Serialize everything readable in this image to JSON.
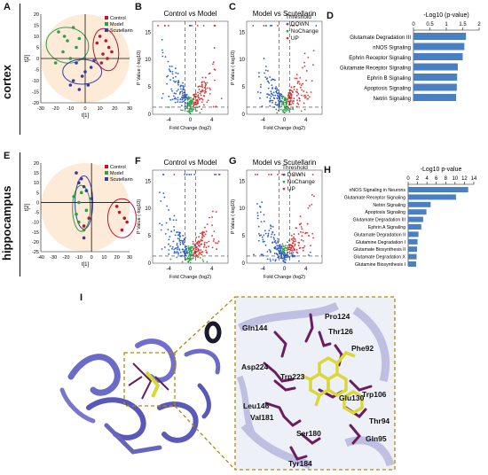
{
  "row_labels": {
    "cortex": "cortex",
    "hippocampus": "hippocampus"
  },
  "panel_letters": [
    "A",
    "B",
    "C",
    "D",
    "E",
    "F",
    "G",
    "H",
    "I"
  ],
  "legend_groups": [
    "Control",
    "Model",
    "Scutellarin"
  ],
  "threshold_legend": {
    "title": "Threshold",
    "items": [
      "DOWN",
      "NoChange",
      "UP"
    ]
  },
  "volcano_axes": {
    "xlabel": "Fold Change (log2)",
    "ylabel": "P Value (-log10)"
  },
  "volcano_titles": {
    "b": "Control vs Model",
    "c": "Model vs Scutellarin",
    "f": "Control vs Model",
    "g": "Model vs Scutellarin"
  },
  "pca_axes": {
    "xlabel": "t[1]",
    "ylabel": "t[2]"
  },
  "pathway_titles": {
    "d": "-Log10 (p-value)",
    "h": "-Log10 p-value"
  },
  "residue_labels": [
    "Pro124",
    "Thr126",
    "Phe92",
    "Gln144",
    "Asp224",
    "Trp223",
    "Leu146",
    "Val181",
    "Glu130",
    "Trp106",
    "Thr94",
    "Gln95",
    "Ser180",
    "Tyr184"
  ],
  "colors": {
    "control": "#c8102e",
    "model": "#2e9e4a",
    "scut": "#3a3aa0",
    "bar": "#4a7fc1",
    "up": "#e53030",
    "down": "#2a5fd0",
    "nochange": "#33a34a",
    "protein": "#6a6ac8",
    "ligand": "#d8d838",
    "residue": "#6a1e60"
  },
  "chart_data": [
    {
      "panel": "A",
      "type": "scatter",
      "xlabel": "t[1]",
      "ylabel": "t[2]",
      "xlim": [
        -30,
        30
      ],
      "ylim": [
        -20,
        20
      ],
      "series": [
        {
          "name": "Control",
          "points": [
            [
              10,
              10
            ],
            [
              14,
              8
            ],
            [
              16,
              5
            ],
            [
              12,
              2
            ],
            [
              8,
              7
            ],
            [
              18,
              3
            ],
            [
              11,
              -2
            ],
            [
              15,
              0
            ]
          ]
        },
        {
          "name": "Model",
          "points": [
            [
              -18,
              12
            ],
            [
              -12,
              8
            ],
            [
              -8,
              14
            ],
            [
              -15,
              3
            ],
            [
              -6,
              5
            ],
            [
              -20,
              -2
            ],
            [
              -10,
              0
            ],
            [
              -4,
              9
            ],
            [
              -14,
              10
            ]
          ]
        },
        {
          "name": "Scutellarin",
          "points": [
            [
              -8,
              -10
            ],
            [
              -4,
              -14
            ],
            [
              0,
              -6
            ],
            [
              -10,
              -12
            ],
            [
              4,
              -4
            ],
            [
              -6,
              -2
            ],
            [
              2,
              -12
            ],
            [
              -2,
              -8
            ],
            [
              6,
              -1
            ]
          ]
        }
      ]
    },
    {
      "panel": "D",
      "type": "bar",
      "orientation": "horizontal",
      "title": "-Log10 (p-value)",
      "xlim": [
        0,
        2
      ],
      "categories": [
        "Glutamate Degradation III",
        "nNOS Signaling",
        "Ephrin Receptor Signaling",
        "Glutamate Receptor Signaling",
        "Ephrin B Signaling",
        "Apoptosis Signaling",
        "Netrin Signaling"
      ],
      "values": [
        1.6,
        1.55,
        1.5,
        1.35,
        1.33,
        1.32,
        1.3
      ]
    },
    {
      "panel": "E",
      "type": "scatter",
      "xlabel": "t[1]",
      "ylabel": "t[2]",
      "xlim": [
        -40,
        30
      ],
      "ylim": [
        -25,
        20
      ],
      "series": [
        {
          "name": "Control",
          "points": [
            [
              22,
              -5
            ],
            [
              26,
              -8
            ],
            [
              24,
              -14
            ],
            [
              28,
              -10
            ],
            [
              20,
              -2
            ],
            [
              -2,
              -8
            ],
            [
              -6,
              -12
            ]
          ]
        },
        {
          "name": "Model",
          "points": [
            [
              -10,
              0
            ],
            [
              -8,
              5
            ],
            [
              -12,
              -6
            ],
            [
              -6,
              -14
            ],
            [
              -14,
              3
            ],
            [
              -10,
              -10
            ],
            [
              -4,
              -4
            ]
          ]
        },
        {
          "name": "Scutellarin",
          "points": [
            [
              -8,
              12
            ],
            [
              -6,
              8
            ],
            [
              -12,
              15
            ],
            [
              -4,
              6
            ],
            [
              -10,
              10
            ],
            [
              0,
              2
            ],
            [
              -6,
              -18
            ]
          ]
        }
      ]
    },
    {
      "panel": "H",
      "type": "bar",
      "orientation": "horizontal",
      "title": "-Log10 p-value",
      "xlim": [
        0,
        14
      ],
      "categories": [
        "nNOS Signaling in Neurons",
        "Glutamate Receptor Signaling",
        "Netrin Signaling",
        "Apoptosis Signaling",
        "Glutamate Degradation III",
        "Ephrin A Signaling",
        "Glutamate Degradation II",
        "Glutamine Degradation I",
        "Glutamate Biosynthesis II",
        "Glutamate Degradation X",
        "Glutamine Biosynthesis I"
      ],
      "values": [
        12.8,
        10.2,
        4.8,
        3.9,
        3.2,
        2.8,
        2.2,
        2.0,
        1.9,
        1.8,
        1.7
      ]
    }
  ]
}
